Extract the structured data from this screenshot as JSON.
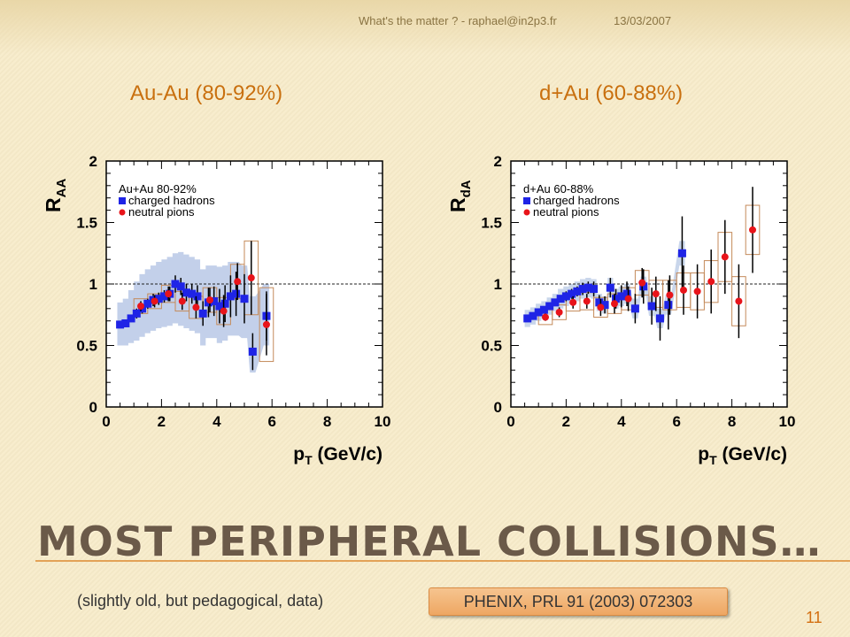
{
  "header": {
    "title": "What's the matter ? - raphael@in2p3.fr",
    "date": "13/03/2007"
  },
  "panels": [
    {
      "title": "Au-Au (80-92%)"
    },
    {
      "title": "d+Au (60-88%)"
    }
  ],
  "slide": {
    "title": "Most peripheral collisions…",
    "subtitle": "(slightly old, but pedagogical, data)",
    "reference": "PHENIX, PRL 91 (2003) 072303",
    "page_number": "11"
  },
  "colors": {
    "accent": "#c9700f",
    "charged_hadrons": "#1f24e6",
    "neutral_pions": "#e8141a",
    "band_auau": "#b8c8e6",
    "band_dau": "#c0cfe8",
    "syst_box": "#c48a5a"
  },
  "chart_data": [
    {
      "type": "scatter",
      "title": "",
      "xlabel": "pT (GeV/c)",
      "ylabel": "RAA",
      "xlim": [
        0,
        10
      ],
      "ylim": [
        0,
        2
      ],
      "x_ticks": [
        0,
        2,
        4,
        6,
        8,
        10
      ],
      "y_ticks": [
        0,
        0.5,
        1,
        1.5,
        2
      ],
      "reference_line": 1,
      "legend": {
        "title": "Au+Au 80-92%",
        "position": "top-left"
      },
      "series": [
        {
          "name": "charged hadrons",
          "marker": "square",
          "x": [
            0.5,
            0.7,
            0.9,
            1.1,
            1.3,
            1.5,
            1.7,
            1.9,
            2.1,
            2.3,
            2.5,
            2.7,
            2.9,
            3.1,
            3.3,
            3.5,
            3.7,
            3.9,
            4.1,
            4.3,
            4.5,
            4.7,
            5.0,
            5.3,
            5.8
          ],
          "y": [
            0.67,
            0.68,
            0.72,
            0.76,
            0.8,
            0.84,
            0.87,
            0.88,
            0.9,
            0.92,
            1.0,
            0.98,
            0.93,
            0.92,
            0.9,
            0.76,
            0.85,
            0.86,
            0.82,
            0.84,
            0.9,
            0.92,
            0.88,
            0.45,
            0.74
          ],
          "err": [
            0.03,
            0.03,
            0.03,
            0.04,
            0.04,
            0.04,
            0.05,
            0.05,
            0.05,
            0.06,
            0.07,
            0.07,
            0.07,
            0.08,
            0.09,
            0.1,
            0.12,
            0.12,
            0.14,
            0.15,
            0.17,
            0.18,
            0.2,
            0.15,
            0.2
          ],
          "band_low": [
            0.5,
            0.5,
            0.52,
            0.54,
            0.57,
            0.6,
            0.62,
            0.64,
            0.65,
            0.66,
            0.68,
            0.66,
            0.64,
            0.62,
            0.6,
            0.5,
            0.56,
            0.56,
            0.52,
            0.54,
            0.58,
            0.58,
            0.56,
            0.28,
            0.5
          ],
          "band_high": [
            0.85,
            0.88,
            0.95,
            1.02,
            1.08,
            1.12,
            1.15,
            1.18,
            1.2,
            1.22,
            1.25,
            1.26,
            1.24,
            1.22,
            1.2,
            1.12,
            1.15,
            1.15,
            1.14,
            1.15,
            1.18,
            1.18,
            1.15,
            0.9,
            1.0
          ]
        },
        {
          "name": "neutral pions",
          "marker": "circle",
          "x": [
            1.25,
            1.75,
            2.25,
            2.75,
            3.25,
            3.75,
            4.25,
            4.75,
            5.25,
            5.8
          ],
          "y": [
            0.82,
            0.86,
            0.92,
            0.86,
            0.81,
            0.87,
            0.78,
            1.02,
            1.05,
            0.67
          ],
          "err": [
            0.04,
            0.05,
            0.06,
            0.07,
            0.09,
            0.1,
            0.13,
            0.15,
            0.3,
            0.25
          ],
          "syst": [
            0.06,
            0.06,
            0.07,
            0.08,
            0.09,
            0.1,
            0.11,
            0.14,
            0.3,
            0.3
          ]
        }
      ]
    },
    {
      "type": "scatter",
      "title": "",
      "xlabel": "pT (GeV/c)",
      "ylabel": "RdA",
      "xlim": [
        0,
        10
      ],
      "ylim": [
        0,
        2
      ],
      "x_ticks": [
        0,
        2,
        4,
        6,
        8,
        10
      ],
      "y_ticks": [
        0,
        0.5,
        1,
        1.5,
        2
      ],
      "reference_line": 1,
      "legend": {
        "title": "d+Au 60-88%",
        "position": "top-left"
      },
      "series": [
        {
          "name": "charged hadrons",
          "marker": "square",
          "x": [
            0.6,
            0.8,
            1.0,
            1.2,
            1.4,
            1.6,
            1.8,
            2.0,
            2.2,
            2.4,
            2.6,
            2.8,
            3.0,
            3.2,
            3.4,
            3.6,
            3.8,
            4.0,
            4.2,
            4.5,
            4.8,
            5.1,
            5.4,
            5.7,
            6.2
          ],
          "y": [
            0.72,
            0.74,
            0.77,
            0.79,
            0.82,
            0.85,
            0.88,
            0.9,
            0.92,
            0.94,
            0.96,
            0.97,
            0.96,
            0.85,
            0.83,
            0.97,
            0.88,
            0.9,
            0.92,
            0.8,
            0.98,
            0.82,
            0.72,
            0.83,
            1.25
          ],
          "err": [
            0.02,
            0.02,
            0.02,
            0.02,
            0.03,
            0.03,
            0.03,
            0.04,
            0.04,
            0.04,
            0.05,
            0.05,
            0.06,
            0.06,
            0.07,
            0.08,
            0.08,
            0.09,
            0.1,
            0.12,
            0.14,
            0.15,
            0.18,
            0.2,
            0.3
          ],
          "band_low": [
            0.65,
            0.67,
            0.7,
            0.72,
            0.75,
            0.78,
            0.8,
            0.82,
            0.84,
            0.86,
            0.88,
            0.89,
            0.88,
            0.78,
            0.76,
            0.89,
            0.8,
            0.82,
            0.84,
            0.72,
            0.9,
            0.74,
            0.64,
            0.75,
            1.15
          ],
          "band_high": [
            0.79,
            0.81,
            0.84,
            0.86,
            0.89,
            0.92,
            0.96,
            0.98,
            1.0,
            1.02,
            1.04,
            1.05,
            1.04,
            0.92,
            0.9,
            1.05,
            0.96,
            0.98,
            1.0,
            0.88,
            1.06,
            0.9,
            0.8,
            0.91,
            1.35
          ]
        },
        {
          "name": "neutral pions",
          "marker": "circle",
          "x": [
            1.25,
            1.75,
            2.25,
            2.75,
            3.25,
            3.75,
            4.25,
            4.75,
            5.25,
            5.75,
            6.25,
            6.75,
            7.25,
            7.75,
            8.25,
            8.75
          ],
          "y": [
            0.73,
            0.77,
            0.85,
            0.86,
            0.81,
            0.84,
            0.88,
            1.01,
            0.92,
            0.91,
            0.95,
            0.94,
            1.02,
            1.22,
            0.86,
            1.44
          ],
          "err": [
            0.03,
            0.04,
            0.05,
            0.06,
            0.07,
            0.08,
            0.1,
            0.12,
            0.14,
            0.16,
            0.2,
            0.22,
            0.26,
            0.3,
            0.3,
            0.35
          ],
          "syst": [
            0.06,
            0.06,
            0.07,
            0.07,
            0.08,
            0.08,
            0.09,
            0.1,
            0.11,
            0.12,
            0.14,
            0.15,
            0.17,
            0.2,
            0.2,
            0.2
          ]
        }
      ]
    }
  ]
}
